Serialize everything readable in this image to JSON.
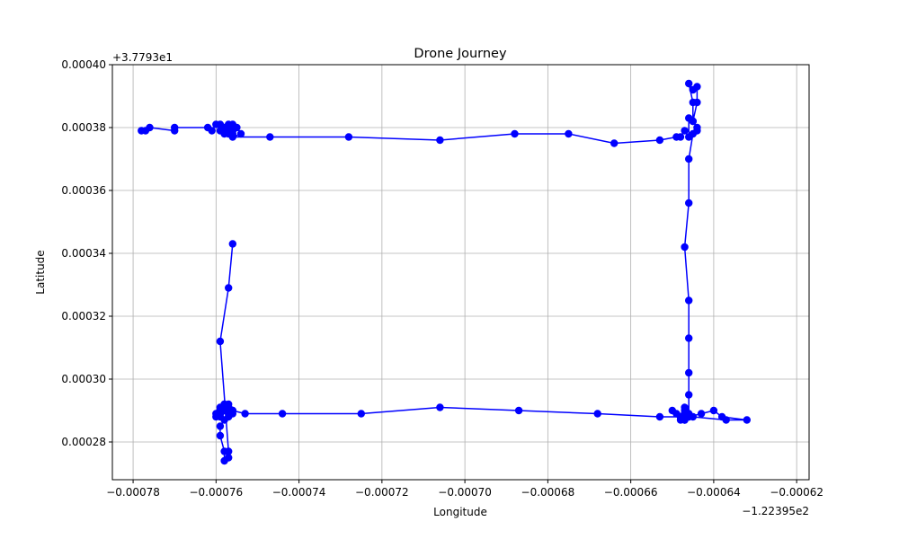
{
  "chart_data": {
    "type": "line",
    "title": "Drone Journey",
    "xlabel": "Longitude",
    "ylabel": "Latitude",
    "x_offset_label": "−1.22395e2",
    "y_offset_label": "+3.7793e1",
    "xlim": [
      -0.000785,
      -0.000617
    ],
    "ylim": [
      0.000268,
      0.0004
    ],
    "xticks": [
      -0.00078,
      -0.00076,
      -0.00074,
      -0.00072,
      -0.0007,
      -0.00068,
      -0.00066,
      -0.00064,
      -0.00062
    ],
    "xtick_labels": [
      "−0.00078",
      "−0.00076",
      "−0.00074",
      "−0.00072",
      "−0.00070",
      "−0.00068",
      "−0.00066",
      "−0.00064",
      "−0.00062"
    ],
    "yticks": [
      0.00028,
      0.0003,
      0.00032,
      0.00034,
      0.00036,
      0.00038,
      0.0004
    ],
    "ytick_labels": [
      "0.00028",
      "0.00030",
      "0.00032",
      "0.00034",
      "0.00036",
      "0.00038",
      "0.00040"
    ],
    "grid": true,
    "color": "#0000ff",
    "series": [
      {
        "x": [
          -0.000778,
          -0.000777,
          -0.000776,
          -0.00077,
          -0.00077,
          -0.000762,
          -0.000761,
          -0.00076,
          -0.000759,
          -0.000759,
          -0.000758,
          -0.000757,
          -0.000757,
          -0.000756,
          -0.000756,
          -0.000756,
          -0.000757,
          -0.000758,
          -0.000757,
          -0.000756,
          -0.000755,
          -0.000754,
          -0.000756,
          -0.000747,
          -0.000728,
          -0.000706,
          -0.000688,
          -0.000675,
          -0.000664,
          -0.000653,
          -0.000649,
          -0.000648,
          -0.000647,
          -0.000646,
          -0.000646,
          -0.000645,
          -0.000645,
          -0.000646,
          -0.000645,
          -0.000644,
          -0.000644,
          -0.000645,
          -0.000644,
          -0.000644,
          -0.000645,
          -0.000646,
          -0.000646,
          -0.000647,
          -0.000646,
          -0.000646,
          -0.000646,
          -0.000646,
          -0.000646,
          -0.000647,
          -0.000648,
          -0.000648,
          -0.000647,
          -0.000647,
          -0.000647,
          -0.000646,
          -0.000647,
          -0.000648,
          -0.000649,
          -0.00065,
          -0.000648,
          -0.000647,
          -0.000646,
          -0.000643,
          -0.00064,
          -0.000638,
          -0.000632,
          -0.000637,
          -0.000645,
          -0.000653,
          -0.000668,
          -0.000687,
          -0.000706,
          -0.000725,
          -0.000744,
          -0.000753,
          -0.000756,
          -0.000757,
          -0.000758,
          -0.000759,
          -0.00076,
          -0.00076,
          -0.000759,
          -0.000758,
          -0.000757,
          -0.000757,
          -0.000756,
          -0.000756,
          -0.000757,
          -0.000758,
          -0.000757,
          -0.000759,
          -0.000759,
          -0.000759,
          -0.000759,
          -0.000759,
          -0.000759,
          -0.000758,
          -0.000758,
          -0.000757,
          -0.000757,
          -0.000758,
          -0.000759,
          -0.000759,
          -0.000758,
          -0.000758,
          -0.000757,
          -0.000757,
          -0.000759,
          -0.000757,
          -0.000756
        ],
        "y": [
          0.000379,
          0.000379,
          0.00038,
          0.000379,
          0.00038,
          0.00038,
          0.000379,
          0.000381,
          0.000381,
          0.000379,
          0.00038,
          0.000381,
          0.00038,
          0.000379,
          0.000381,
          0.000378,
          0.000379,
          0.000378,
          0.000378,
          0.000379,
          0.00038,
          0.000378,
          0.000377,
          0.000377,
          0.000377,
          0.000376,
          0.000378,
          0.000378,
          0.000375,
          0.000376,
          0.000377,
          0.000377,
          0.000379,
          0.000377,
          0.000383,
          0.000382,
          0.000388,
          0.000394,
          0.000392,
          0.000393,
          0.000388,
          0.000382,
          0.00038,
          0.000379,
          0.000378,
          0.00037,
          0.000356,
          0.000342,
          0.000325,
          0.000313,
          0.000302,
          0.000295,
          0.000289,
          0.00029,
          0.000288,
          0.000287,
          0.000288,
          0.000289,
          0.000291,
          0.000288,
          0.000287,
          0.000288,
          0.000289,
          0.00029,
          0.000288,
          0.000287,
          0.000288,
          0.000289,
          0.00029,
          0.000288,
          0.000287,
          0.000287,
          0.000288,
          0.000288,
          0.000289,
          0.00029,
          0.000291,
          0.000289,
          0.000289,
          0.000289,
          0.00029,
          0.000291,
          0.00029,
          0.000289,
          0.000288,
          0.000289,
          0.00029,
          0.000291,
          0.000292,
          0.00029,
          0.000289,
          0.00029,
          0.000291,
          0.000292,
          0.000291,
          0.00029,
          0.000289,
          0.000288,
          0.000289,
          0.00029,
          0.000291,
          0.000292,
          0.00029,
          0.000289,
          0.000288,
          0.000287,
          0.000285,
          0.000282,
          0.000277,
          0.000274,
          0.000275,
          0.000277,
          0.000312,
          0.000329,
          0.000343
        ]
      }
    ]
  }
}
